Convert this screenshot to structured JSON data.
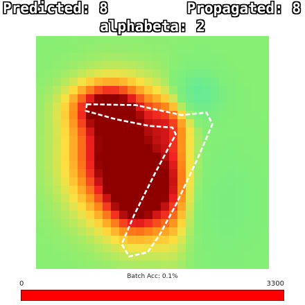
{
  "header": {
    "predicted": "Predicted: 8",
    "propagated": "Propagated: 8",
    "method": "alphabeta: 2"
  },
  "footer": {
    "batch_acc": "Batch Acc: 0.1%",
    "bar_min": "0",
    "bar_max": "3300",
    "bar_value": 3300,
    "bar_color": "#ff0000"
  },
  "colors": {
    "background": "#86ef74",
    "cool": "#4de6b0",
    "warm_low": "#ffe040",
    "warm_mid": "#ff8c1a",
    "warm_high": "#ef2020",
    "peak": "#8e0000",
    "contour": "#ffffff"
  },
  "chart_data": {
    "type": "heatmap",
    "title": "",
    "xlabel": "",
    "ylabel": "",
    "grid_size": [
      28,
      28
    ],
    "vrange": [
      -1,
      1
    ],
    "hotspots": [
      {
        "cx": 10,
        "cy": 14.5,
        "sx": 4.0,
        "sy": 5.0,
        "amp": 1.15
      },
      {
        "cx": 12.5,
        "cy": 19.5,
        "sx": 2.5,
        "sy": 3.5,
        "amp": 0.8
      },
      {
        "cx": 8.5,
        "cy": 8.5,
        "sx": 3.0,
        "sy": 2.0,
        "amp": 0.75
      },
      {
        "cx": 16.5,
        "cy": 17.5,
        "sx": 1.5,
        "sy": 5.5,
        "amp": 0.45
      },
      {
        "cx": 16,
        "cy": 10,
        "sx": 2.0,
        "sy": 2.0,
        "amp": 0.35
      },
      {
        "cx": 19.5,
        "cy": 7,
        "sx": 2.0,
        "sy": 2.0,
        "amp": -0.6
      },
      {
        "cx": 23,
        "cy": 20,
        "sx": 3.0,
        "sy": 5.0,
        "amp": -0.2
      }
    ],
    "digit_outline": [
      [
        6.1,
        8.2
      ],
      [
        12.0,
        8.3
      ],
      [
        17.5,
        9.5
      ],
      [
        20.5,
        9.2
      ],
      [
        21.2,
        10.6
      ],
      [
        19.3,
        15.0
      ],
      [
        16.8,
        20.3
      ],
      [
        14.8,
        24.0
      ],
      [
        13.4,
        26.0
      ],
      [
        11.2,
        26.5
      ],
      [
        10.3,
        25.0
      ],
      [
        11.8,
        21.5
      ],
      [
        14.3,
        16.5
      ],
      [
        16.8,
        11.8
      ],
      [
        16.4,
        11.0
      ],
      [
        13.6,
        10.8
      ],
      [
        9.6,
        10.0
      ],
      [
        6.0,
        9.0
      ]
    ]
  }
}
